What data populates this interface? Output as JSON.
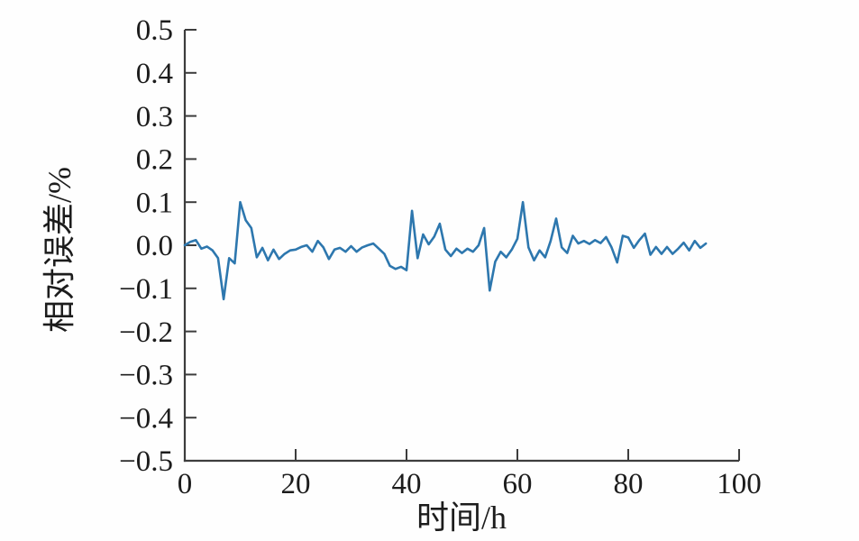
{
  "figure": {
    "background": "#fefefe",
    "axis_color": "#3d3d3d",
    "line_color": "#2d77ae"
  },
  "chart_data": {
    "type": "line",
    "title": "",
    "xlabel": "时间/h",
    "ylabel": "相对误差/%",
    "xlim": [
      0,
      100
    ],
    "ylim": [
      -0.5,
      0.5
    ],
    "grid": false,
    "legend": "none",
    "x_ticks": [
      0,
      20,
      40,
      60,
      80,
      100
    ],
    "x_tick_labels": [
      "0",
      "20",
      "40",
      "60",
      "80",
      "100"
    ],
    "y_ticks": [
      0.5,
      0.4,
      0.3,
      0.2,
      0.1,
      0.0,
      -0.1,
      -0.2,
      -0.3,
      -0.4,
      -0.5
    ],
    "y_tick_labels": [
      "0.5",
      "0.4",
      "0.3",
      "0.2",
      "0.1",
      "0.0",
      "−0.1",
      "−0.2",
      "−0.3",
      "−0.4",
      "−0.5"
    ],
    "series": [
      {
        "name": "相对误差",
        "color": "#2d77ae",
        "x": [
          0,
          1,
          2,
          3,
          4,
          5,
          6,
          7,
          8,
          9,
          10,
          11,
          12,
          13,
          14,
          15,
          16,
          17,
          18,
          19,
          20,
          21,
          22,
          23,
          24,
          25,
          26,
          27,
          28,
          29,
          30,
          31,
          32,
          33,
          34,
          35,
          36,
          37,
          38,
          39,
          40,
          41,
          42,
          43,
          44,
          45,
          46,
          47,
          48,
          49,
          50,
          51,
          52,
          53,
          54,
          55,
          56,
          57,
          58,
          59,
          60,
          61,
          62,
          63,
          64,
          65,
          66,
          67,
          68,
          69,
          70,
          71,
          72,
          73,
          74,
          75,
          76,
          77,
          78,
          79,
          80,
          81,
          82,
          83,
          84,
          85,
          86,
          87,
          88,
          89,
          90,
          91,
          92,
          93,
          94
        ],
        "y": [
          0.0,
          0.008,
          0.012,
          -0.008,
          -0.003,
          -0.012,
          -0.03,
          -0.125,
          -0.03,
          -0.042,
          0.1,
          0.058,
          0.04,
          -0.028,
          -0.006,
          -0.035,
          -0.01,
          -0.032,
          -0.02,
          -0.012,
          -0.01,
          -0.004,
          0.0,
          -0.015,
          0.01,
          -0.005,
          -0.032,
          -0.01,
          -0.006,
          -0.015,
          -0.002,
          -0.015,
          -0.005,
          0.0,
          0.004,
          -0.008,
          -0.02,
          -0.048,
          -0.055,
          -0.05,
          -0.058,
          0.08,
          -0.03,
          0.025,
          0.002,
          0.02,
          0.05,
          -0.01,
          -0.025,
          -0.008,
          -0.018,
          -0.008,
          -0.015,
          0.0,
          0.04,
          -0.105,
          -0.038,
          -0.015,
          -0.028,
          -0.01,
          0.015,
          0.1,
          -0.005,
          -0.035,
          -0.012,
          -0.028,
          0.01,
          0.062,
          -0.005,
          -0.018,
          0.022,
          0.004,
          0.01,
          0.003,
          0.012,
          0.005,
          0.019,
          -0.005,
          -0.04,
          0.022,
          0.018,
          -0.006,
          0.012,
          0.027,
          -0.022,
          -0.004,
          -0.02,
          -0.004,
          -0.02,
          -0.008,
          0.006,
          -0.012,
          0.01,
          -0.006,
          0.004
        ]
      }
    ]
  }
}
